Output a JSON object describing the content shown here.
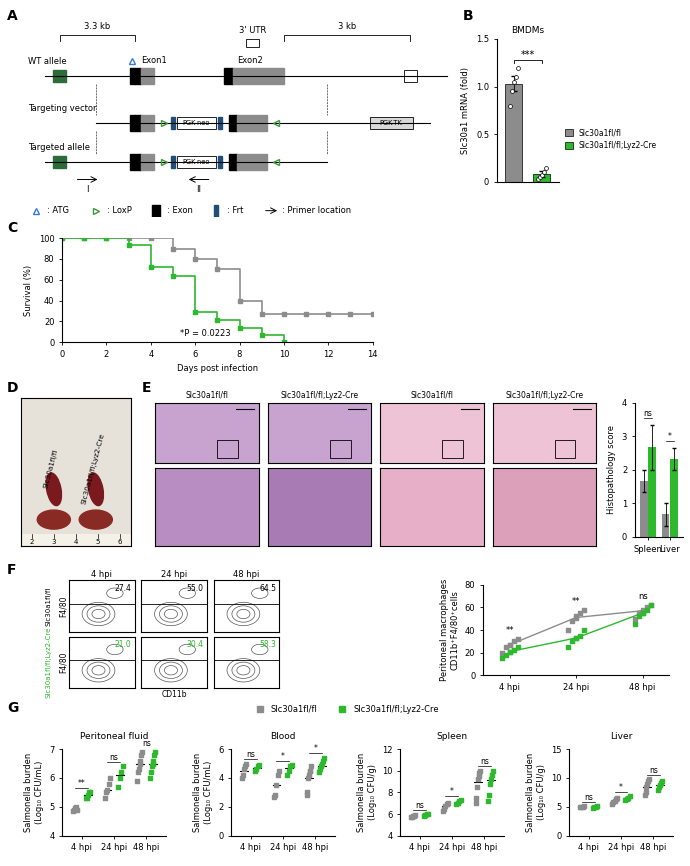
{
  "diagram": {
    "panel": "A",
    "distances": [
      "3.3 kb",
      "3 kb"
    ],
    "utr": "3' UTR",
    "exons": [
      "Exon1",
      "Exon2"
    ],
    "rows": [
      "WT allele",
      "Targeting vector",
      "Targeted allele"
    ],
    "cassettes": [
      "PGK-neo",
      "PGK-TK"
    ],
    "key": [
      ": ATG",
      ": LoxP",
      ": Exon",
      ": Frt",
      ": Primer location"
    ],
    "primers": [
      "I",
      "II"
    ]
  },
  "chart_data": [
    {
      "panel": "B",
      "type": "bar",
      "title": "BMDMs",
      "ylabel": "Slc30a1 mRNA (fold)",
      "series": [
        {
          "name": "Slc30a1fl/fl",
          "color": "#8c8c8c",
          "values": [
            1.03
          ],
          "error": [
            0.08
          ],
          "points": [
            [
              0.8,
              0.95,
              1.05,
              1.1,
              1.2
            ]
          ]
        },
        {
          "name": "Slc30a1fl/fl;Lyz2-Cre",
          "color": "#2db82d",
          "values": [
            0.08
          ],
          "error": [
            0.03
          ],
          "points": [
            [
              0.03,
              0.05,
              0.07,
              0.1,
              0.15
            ]
          ]
        }
      ],
      "significance": [
        "***"
      ],
      "ylim": [
        0,
        1.5
      ],
      "yticks": [
        0,
        0.5,
        1.0,
        1.5
      ],
      "tick_labels": "y",
      "legend": "center left"
    },
    {
      "panel": "C",
      "type": "line",
      "line_style": "steps",
      "marker": "s",
      "xlabel": "Days post infection",
      "ylabel": "Survival (%)",
      "annotation": "*P = 0.0223",
      "xlim": [
        0,
        14
      ],
      "xticks": [
        0,
        2,
        4,
        6,
        8,
        10,
        12,
        14
      ],
      "ylim": [
        0,
        100
      ],
      "yticks": [
        0,
        20,
        40,
        60,
        80,
        100
      ],
      "series": [
        {
          "color": "#8c8c8c",
          "x": [
            0,
            1,
            2,
            3,
            4,
            5,
            6,
            7,
            8,
            9,
            10,
            11,
            12,
            13,
            14
          ],
          "values": [
            100,
            100,
            100,
            100,
            100,
            90,
            80,
            70,
            40,
            27,
            27,
            27,
            27,
            27,
            27
          ]
        },
        {
          "color": "#2db82d",
          "x": [
            0,
            1,
            2,
            3,
            4,
            5,
            6,
            7,
            8,
            9,
            10
          ],
          "values": [
            100,
            100,
            100,
            93,
            72,
            64,
            29,
            21,
            14,
            7,
            0
          ]
        }
      ]
    },
    {
      "panel": "E",
      "type": "bar",
      "ylabel": "Histopathology score",
      "categories": [
        "Spleen",
        "Liver"
      ],
      "series": [
        {
          "color": "#8c8c8c",
          "values": [
            1.67,
            0.67
          ],
          "error": [
            0.33,
            0.33
          ]
        },
        {
          "color": "#2db82d",
          "values": [
            2.67,
            2.33
          ],
          "error": [
            0.67,
            0.33
          ]
        }
      ],
      "significance": [
        "ns",
        "*"
      ],
      "ylim": [
        0,
        4
      ],
      "yticks": [
        0,
        1,
        2,
        3,
        4
      ]
    },
    {
      "panel": "F",
      "type": "line",
      "marker": "s",
      "ylabel": "Peritoneal macrophages\nCD11b⁺F4/80⁺cells",
      "categories": [
        "4 hpi",
        "24 hpi",
        "48 hpi"
      ],
      "series": [
        {
          "color": "#8c8c8c",
          "values": [
            27,
            51,
            57
          ],
          "points": [
            [
              20,
              25,
              27,
              30,
              32
            ],
            [
              40,
              48,
              52,
              55,
              58
            ],
            [
              50,
              55,
              58,
              60,
              62
            ]
          ]
        },
        {
          "color": "#2db82d",
          "values": [
            21,
            33,
            55
          ],
          "points": [
            [
              15,
              18,
              21,
              22,
              25
            ],
            [
              25,
              30,
              33,
              35,
              40
            ],
            [
              45,
              52,
              55,
              58,
              62
            ]
          ]
        }
      ],
      "significance": [
        "**",
        "**",
        "ns"
      ],
      "ylim": [
        0,
        80
      ],
      "yticks": [
        0,
        20,
        40,
        60,
        80
      ]
    },
    {
      "panel": "G",
      "type": "scatter",
      "marker": "s",
      "title": "Peritoneal fluid",
      "ylabel": "Salmonella burden\n(Log₁₀ CFU/mL)",
      "categories": [
        "4 hpi",
        "24 hpi",
        "48 hpi"
      ],
      "legend": "upper center",
      "series": [
        {
          "name": "Slc30a1fl/fl",
          "color": "#8c8c8c",
          "values": [
            4.9,
            5.6,
            6.5
          ],
          "points": [
            [
              4.85,
              4.9,
              4.95,
              5.0,
              4.88
            ],
            [
              5.3,
              5.5,
              5.6,
              5.8,
              6.0
            ],
            [
              5.9,
              6.2,
              6.3,
              6.5,
              6.6,
              6.8,
              6.9
            ]
          ]
        },
        {
          "name": "Slc30a1fl/fl;Lyz2-Cre",
          "color": "#2db82d",
          "values": [
            5.4,
            6.1,
            6.5
          ],
          "points": [
            [
              5.3,
              5.3,
              5.4,
              5.5,
              5.5
            ],
            [
              5.7,
              6.0,
              6.2,
              6.4
            ],
            [
              6.0,
              6.2,
              6.4,
              6.5,
              6.6,
              6.8,
              6.9
            ]
          ]
        }
      ],
      "significance": [
        "**",
        "ns",
        "ns"
      ],
      "ylim": [
        4,
        7
      ],
      "yticks": [
        4,
        5,
        6,
        7
      ]
    },
    {
      "type": "scatter",
      "marker": "s",
      "title": "Blood",
      "ylabel": "Salmonella burden\n(Log₁₀ CFU/mL)",
      "categories": [
        "4 hpi",
        "24 hpi",
        "48 hpi"
      ],
      "series": [
        {
          "color": "#8c8c8c",
          "values": [
            4.5,
            3.5,
            4.0
          ],
          "points": [
            [
              4.0,
              4.2,
              4.6,
              4.8,
              5.0
            ],
            [
              2.7,
              2.8,
              3.5,
              4.2,
              4.5
            ],
            [
              2.8,
              3.0,
              4.0,
              4.2,
              4.5,
              4.5,
              4.8
            ]
          ]
        },
        {
          "color": "#2db82d",
          "values": [
            4.7,
            4.7,
            4.8
          ],
          "points": [
            [
              4.5,
              4.6,
              4.8,
              4.9
            ],
            [
              4.2,
              4.5,
              4.8,
              4.9
            ],
            [
              4.4,
              4.6,
              4.8,
              5.0,
              5.2,
              5.4
            ]
          ]
        }
      ],
      "significance": [
        "ns",
        "*",
        "*"
      ],
      "ylim": [
        0,
        6
      ],
      "yticks": [
        0,
        2,
        4,
        6
      ]
    },
    {
      "type": "scatter",
      "marker": "s",
      "title": "Spleen",
      "ylabel": "Salmonella burden\n(Log₁₀ CFU/g)",
      "categories": [
        "4 hpi",
        "24 hpi",
        "48 hpi"
      ],
      "series": [
        {
          "color": "#8c8c8c",
          "values": [
            5.8,
            6.7,
            9.0
          ],
          "points": [
            [
              5.7,
              5.75,
              5.8,
              5.85,
              5.9
            ],
            [
              6.3,
              6.5,
              6.7,
              6.9,
              7.0
            ],
            [
              7.0,
              7.5,
              8.5,
              9.2,
              9.5,
              9.8,
              10.0
            ]
          ]
        },
        {
          "color": "#2db82d",
          "values": [
            5.9,
            7.1,
            9.1
          ],
          "points": [
            [
              5.8,
              5.9,
              6.0,
              6.0
            ],
            [
              6.9,
              7.0,
              7.2,
              7.3
            ],
            [
              7.2,
              7.8,
              8.8,
              9.2,
              9.6,
              10.0
            ]
          ]
        }
      ],
      "significance": [
        "ns",
        "*",
        "ns"
      ],
      "ylim": [
        4,
        12
      ],
      "yticks": [
        4,
        6,
        8,
        10,
        12
      ]
    },
    {
      "type": "scatter",
      "marker": "s",
      "title": "Liver",
      "ylabel": "Salmonella burden\n(Log₁₀ CFU/g)",
      "categories": [
        "4 hpi",
        "24 hpi",
        "48 hpi"
      ],
      "series": [
        {
          "color": "#8c8c8c",
          "values": [
            5.0,
            6.0,
            8.5
          ],
          "points": [
            [
              4.9,
              5.0,
              5.0,
              5.1
            ],
            [
              5.5,
              5.8,
              6.0,
              6.3,
              6.5
            ],
            [
              7.0,
              7.5,
              8.5,
              9.0,
              9.5,
              9.8
            ]
          ]
        },
        {
          "color": "#2db82d",
          "values": [
            5.0,
            6.5,
            8.8
          ],
          "points": [
            [
              4.8,
              4.9,
              5.0,
              5.1
            ],
            [
              6.2,
              6.4,
              6.6,
              6.8
            ],
            [
              8.0,
              8.5,
              8.8,
              9.2,
              9.5
            ]
          ]
        }
      ],
      "significance": [
        "ns",
        "*",
        "ns"
      ],
      "ylim": [
        0,
        15
      ],
      "yticks": [
        0,
        5,
        10,
        15
      ]
    }
  ],
  "photo": {
    "panel": "D",
    "labels": [
      "Slc30a1fl/fl",
      "Slc30a1fl/fl;Lyz2-Cre"
    ],
    "ruler": [
      2,
      3,
      4,
      5,
      6
    ]
  },
  "histology": {
    "panel": "E",
    "labels": [
      "Slc30a1fl/fl",
      "Slc30a1fl/fl;Lyz2-Cre",
      "Slc30a1fl/fl",
      "Slc30a1fl/fl;Lyz2-Cre"
    ]
  },
  "flow": {
    "panel": "F",
    "rows": [
      "Slc30a1fl/fl",
      "Slc30a1fl/fl;Lyz2-Cre"
    ],
    "colors": [
      "#000000",
      "#2db82d"
    ],
    "columns": [
      "4 hpi",
      "24 hpi",
      "48 hpi"
    ],
    "gates": [
      [
        27.4,
        55.0,
        64.5
      ],
      [
        21.0,
        30.4,
        58.3
      ]
    ],
    "xlabel": "CD11b",
    "ylabel": "F4/80"
  }
}
